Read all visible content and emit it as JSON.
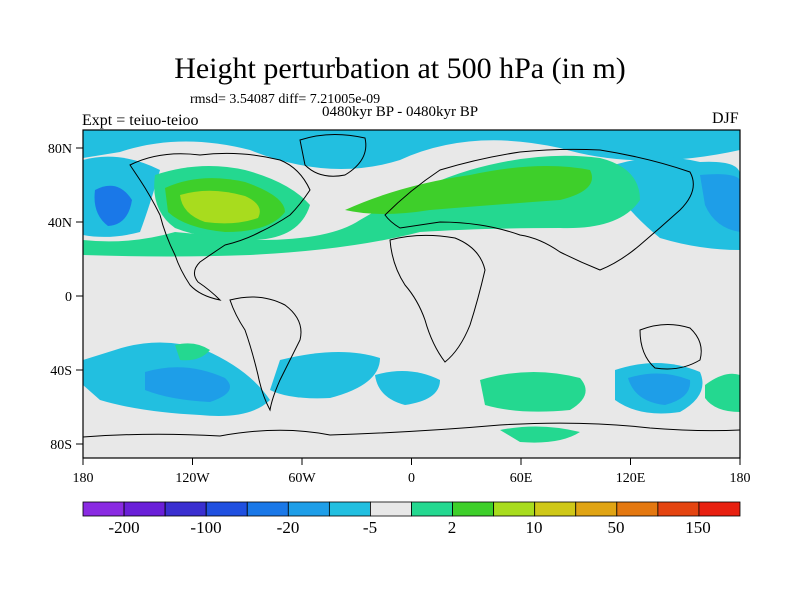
{
  "title": "Height perturbation at 500 hPa (in m)",
  "stats": "rmsd= 3.54087 diff= 7.21005e-09",
  "period": "0480kyr BP - 0480kyr BP",
  "experiment": "Expt = teiuo-teioo",
  "season": "DJF",
  "lat_labels": [
    "80N",
    "40N",
    "0",
    "40S",
    "80S"
  ],
  "lon_labels": [
    "180",
    "120W",
    "60W",
    "0",
    "60E",
    "120E",
    "180"
  ],
  "colorbar": {
    "labels": [
      "-200",
      "-100",
      "-20",
      "-5",
      "2",
      "10",
      "50",
      "150"
    ],
    "colors": [
      "#8a2be2",
      "#6a1fd8",
      "#3a2fd0",
      "#2050e0",
      "#1a78e8",
      "#1e9ee8",
      "#22bfe0",
      "#e8e8e8",
      "#24d890",
      "#3ecf2a",
      "#a8dc1e",
      "#cfc818",
      "#e0a414",
      "#e47810",
      "#e44410",
      "#e82010"
    ]
  },
  "map_colors": {
    "background": "#e8e8e8",
    "pos_light": "#24d890",
    "pos_mid": "#3ecf2a",
    "pos_strong": "#a8dc1e",
    "neg_light": "#22bfe0",
    "neg_mid": "#1e9ee8",
    "neg_strong": "#1a78e8"
  }
}
